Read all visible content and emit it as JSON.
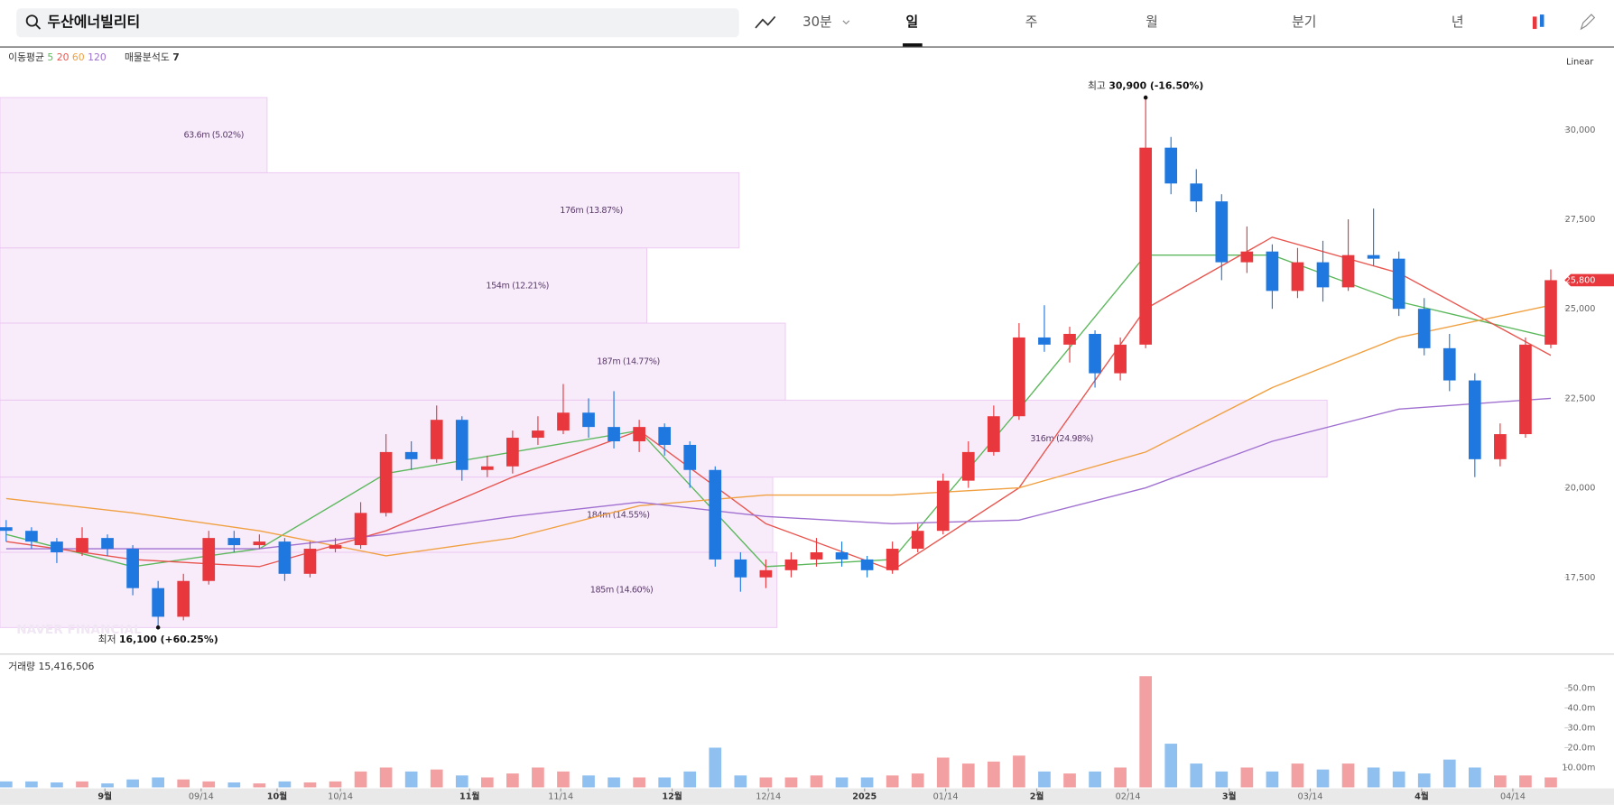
{
  "header": {
    "search": "두산에너빌리티",
    "interval": "30분",
    "tabs": [
      "일",
      "주",
      "월",
      "분기",
      "년"
    ]
  },
  "legend": {
    "ma_label": "이동평균",
    "profile_label": "매물분석도",
    "profile_count": 7
  },
  "scale_mode": "Linear",
  "watermark": "NAVER FINANCIAL",
  "chart_data": {
    "type": "candlestick",
    "up_color": "#e8383d",
    "down_color": "#1e78e0",
    "candles": [
      [
        18900,
        19100,
        18500,
        18800
      ],
      [
        18800,
        18900,
        18300,
        18500
      ],
      [
        18500,
        18600,
        17900,
        18200
      ],
      [
        18200,
        18900,
        18100,
        18600
      ],
      [
        18600,
        18700,
        18100,
        18300
      ],
      [
        18300,
        18400,
        17000,
        17200
      ],
      [
        17200,
        17400,
        16100,
        16400
      ],
      [
        16400,
        17600,
        16300,
        17400
      ],
      [
        17400,
        18800,
        17300,
        18600
      ],
      [
        18600,
        18800,
        18200,
        18400
      ],
      [
        18400,
        18700,
        18300,
        18500
      ],
      [
        18500,
        18600,
        17400,
        17600
      ],
      [
        17600,
        18500,
        17500,
        18300
      ],
      [
        18300,
        18600,
        18200,
        18400
      ],
      [
        18400,
        19600,
        18300,
        19300
      ],
      [
        19300,
        21500,
        19200,
        21000
      ],
      [
        21000,
        21300,
        20500,
        20800
      ],
      [
        20800,
        22300,
        20700,
        21900
      ],
      [
        21900,
        22000,
        20200,
        20500
      ],
      [
        20500,
        20900,
        20300,
        20600
      ],
      [
        20600,
        21600,
        20400,
        21400
      ],
      [
        21400,
        22000,
        21200,
        21600
      ],
      [
        21600,
        22900,
        21500,
        22100
      ],
      [
        22100,
        22500,
        21400,
        21700
      ],
      [
        21700,
        22700,
        21100,
        21300
      ],
      [
        21300,
        21900,
        21000,
        21700
      ],
      [
        21700,
        21800,
        20900,
        21200
      ],
      [
        21200,
        21300,
        20000,
        20500
      ],
      [
        20500,
        20600,
        17800,
        18000
      ],
      [
        18000,
        18200,
        17100,
        17500
      ],
      [
        17500,
        18000,
        17200,
        17700
      ],
      [
        17700,
        18200,
        17500,
        18000
      ],
      [
        18000,
        18600,
        17800,
        18200
      ],
      [
        18200,
        18500,
        17800,
        18000
      ],
      [
        18000,
        18100,
        17500,
        17700
      ],
      [
        17700,
        18500,
        17600,
        18300
      ],
      [
        18300,
        19000,
        18200,
        18800
      ],
      [
        18800,
        20400,
        18700,
        20200
      ],
      [
        20200,
        21300,
        20000,
        21000
      ],
      [
        21000,
        22300,
        20900,
        22000
      ],
      [
        22000,
        24600,
        21900,
        24200
      ],
      [
        24200,
        25100,
        23800,
        24000
      ],
      [
        24000,
        24500,
        23500,
        24300
      ],
      [
        24300,
        24400,
        22800,
        23200
      ],
      [
        23200,
        24200,
        23000,
        24000
      ],
      [
        24000,
        30900,
        23900,
        29500
      ],
      [
        29500,
        29800,
        28200,
        28500
      ],
      [
        28500,
        28900,
        27700,
        28000
      ],
      [
        28000,
        28200,
        25800,
        26300
      ],
      [
        26300,
        27300,
        26000,
        26600
      ],
      [
        26600,
        26800,
        25000,
        25500
      ],
      [
        25500,
        26700,
        25300,
        26300
      ],
      [
        26300,
        26900,
        25200,
        25600
      ],
      [
        25600,
        27500,
        25500,
        26500
      ],
      [
        26500,
        27800,
        26200,
        26400
      ],
      [
        26400,
        26600,
        24800,
        25000
      ],
      [
        25000,
        25300,
        23700,
        23900
      ],
      [
        23900,
        24300,
        22700,
        23000
      ],
      [
        23000,
        23200,
        20300,
        20800
      ],
      [
        20800,
        21800,
        20600,
        21500
      ],
      [
        21500,
        24200,
        21400,
        24000
      ],
      [
        24000,
        26100,
        23900,
        25800
      ]
    ],
    "ylim": [
      15400,
      32270
    ],
    "yticks": [
      {
        "value": 17500,
        "label": "17,500"
      },
      {
        "value": 20000,
        "label": "20,000"
      },
      {
        "value": 22500,
        "label": "22,500"
      },
      {
        "value": 25000,
        "label": "25,000"
      },
      {
        "value": 27500,
        "label": "27,500"
      },
      {
        "value": 30000,
        "label": "30,000"
      }
    ],
    "xticks": [
      {
        "value": 3.9,
        "label": "9월"
      },
      {
        "value": 7.7,
        "label": "09/14"
      },
      {
        "value": 10.7,
        "label": "10월"
      },
      {
        "value": 13.2,
        "label": "10/14"
      },
      {
        "value": 18.3,
        "label": "11월"
      },
      {
        "value": 21.9,
        "label": "11/14"
      },
      {
        "value": 26.3,
        "label": "12월"
      },
      {
        "value": 30.1,
        "label": "12/14"
      },
      {
        "value": 33.9,
        "label": "2025"
      },
      {
        "value": 37.1,
        "label": "01/14"
      },
      {
        "value": 40.7,
        "label": "2월"
      },
      {
        "value": 44.3,
        "label": "02/14"
      },
      {
        "value": 48.3,
        "label": "3월"
      },
      {
        "value": 51.5,
        "label": "03/14"
      },
      {
        "value": 55.9,
        "label": "4월"
      },
      {
        "value": 59.5,
        "label": "04/14"
      }
    ],
    "ma_series": [
      {
        "name": "5",
        "color": "#5cb85c",
        "x": [
          0,
          5,
          10,
          15,
          20,
          25,
          30,
          35,
          40,
          45,
          50,
          55,
          61
        ],
        "values": [
          18700,
          17800,
          18300,
          20400,
          21000,
          21600,
          17800,
          18000,
          22200,
          26500,
          26500,
          25200,
          24200
        ]
      },
      {
        "name": "20",
        "color": "#e8554e",
        "x": [
          0,
          5,
          10,
          15,
          20,
          25,
          30,
          35,
          40,
          45,
          50,
          55,
          61
        ],
        "values": [
          18500,
          18000,
          17800,
          18800,
          20300,
          21600,
          19000,
          17700,
          20000,
          25000,
          27000,
          26000,
          23700
        ]
      },
      {
        "name": "60",
        "color": "#f0a040",
        "x": [
          0,
          5,
          10,
          15,
          20,
          25,
          30,
          35,
          40,
          45,
          50,
          55,
          61
        ],
        "values": [
          19700,
          19300,
          18800,
          18100,
          18600,
          19500,
          19800,
          19800,
          20000,
          21000,
          22800,
          24200,
          25100
        ]
      },
      {
        "name": "120",
        "color": "#a070d0",
        "x": [
          0,
          5,
          10,
          15,
          20,
          25,
          30,
          35,
          40,
          45,
          50,
          55,
          61
        ],
        "values": [
          18300,
          18300,
          18300,
          18700,
          19200,
          19600,
          19200,
          19000,
          19100,
          20000,
          21300,
          22200,
          22500
        ]
      }
    ],
    "profile": {
      "color": "#f3dcf7",
      "bounds": [
        30900,
        28800,
        26700,
        24600,
        22450,
        20300,
        18200,
        16100
      ],
      "volumes": [
        63.6,
        176,
        154,
        187,
        316,
        184,
        185
      ],
      "value_labels": [
        "63.6m (5.02%)",
        "176m (13.87%)",
        "154m (12.21%)",
        "187m (14.77%)",
        "316m (24.98%)",
        "184m (14.55%)",
        "185m (14.60%)"
      ]
    },
    "high": {
      "label": "최고",
      "value_label": "30,900 (-16.50%)"
    },
    "low": {
      "label": "최저",
      "value_label": "16,100 (+60.25%)"
    },
    "last_price_label": "25,800",
    "volume": {
      "title": "거래량",
      "total": "15,416,506",
      "up_color": "#f3a0a3",
      "down_color": "#8fc0f0",
      "values": [
        3,
        3,
        2.5,
        3,
        2,
        4,
        5,
        4,
        3,
        2.5,
        2,
        3,
        2.5,
        3,
        8,
        10,
        8,
        9,
        6,
        5,
        7,
        10,
        8,
        6,
        5,
        5,
        5,
        8,
        20,
        6,
        5,
        5,
        6,
        5,
        5,
        6,
        7,
        15,
        12,
        13,
        16,
        8,
        7,
        8,
        10,
        56,
        22,
        12,
        8,
        10,
        8,
        12,
        9,
        12,
        10,
        8,
        7,
        14,
        10,
        6,
        6,
        5
      ],
      "ylim": [
        0,
        57
      ],
      "yticks": [
        {
          "value": 10,
          "label": "10.00m"
        },
        {
          "value": 20,
          "label": "20.0m"
        },
        {
          "value": 30,
          "label": "30.0m"
        },
        {
          "value": 40,
          "label": "40.0m"
        },
        {
          "value": 50,
          "label": "50.0m"
        }
      ]
    }
  }
}
